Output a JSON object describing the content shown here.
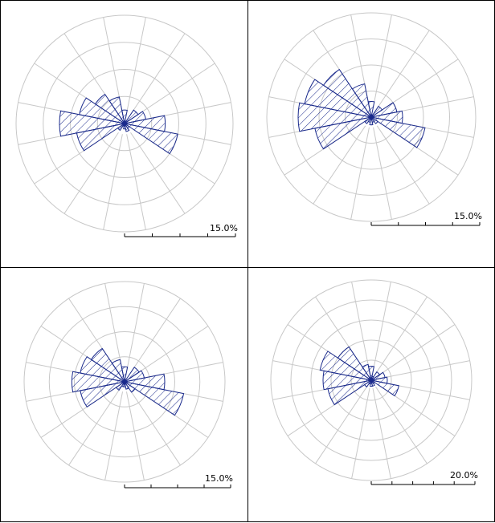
{
  "colors": {
    "petal_stroke": "#1a2a8c",
    "hatch": "#1a2a8c",
    "grid": "#c8c8c8",
    "frame": "#000000"
  },
  "chart_data": [
    {
      "type": "wind_rose",
      "sectors": 16,
      "rings_percent": [
        5,
        10,
        15
      ],
      "grid": true,
      "scale_label": "15.0%",
      "values_percent": [
        2.5,
        0.5,
        3.0,
        4.0,
        7.5,
        10.0,
        1.0,
        1.5,
        1.0,
        0.5,
        1.5,
        9.0,
        12.0,
        8.5,
        6.5,
        5.0
      ]
    },
    {
      "type": "wind_rose",
      "sectors": 16,
      "rings_percent": [
        5,
        10,
        15
      ],
      "grid": true,
      "scale_label": "15.0%",
      "values_percent": [
        3.0,
        0.5,
        2.5,
        5.0,
        6.0,
        10.5,
        1.5,
        1.0,
        1.5,
        1.0,
        1.5,
        11.0,
        14.0,
        13.0,
        11.0,
        6.5
      ]
    },
    {
      "type": "wind_rose",
      "sectors": 16,
      "rings_percent": [
        5,
        10,
        15
      ],
      "grid": true,
      "scale_label": "15.0%",
      "values_percent": [
        3.0,
        0.5,
        3.5,
        4.0,
        8.0,
        12.0,
        2.5,
        1.5,
        1.0,
        1.0,
        2.0,
        9.0,
        10.5,
        9.0,
        8.0,
        4.5
      ]
    },
    {
      "type": "wind_rose",
      "sectors": 16,
      "rings_percent": [
        5,
        10,
        15,
        20
      ],
      "grid": true,
      "scale_label": "20.0%",
      "values_percent": [
        3.5,
        1.0,
        2.5,
        3.5,
        4.0,
        7.0,
        1.0,
        1.5,
        1.5,
        1.0,
        2.0,
        11.0,
        12.0,
        13.0,
        10.0,
        4.0
      ]
    }
  ]
}
